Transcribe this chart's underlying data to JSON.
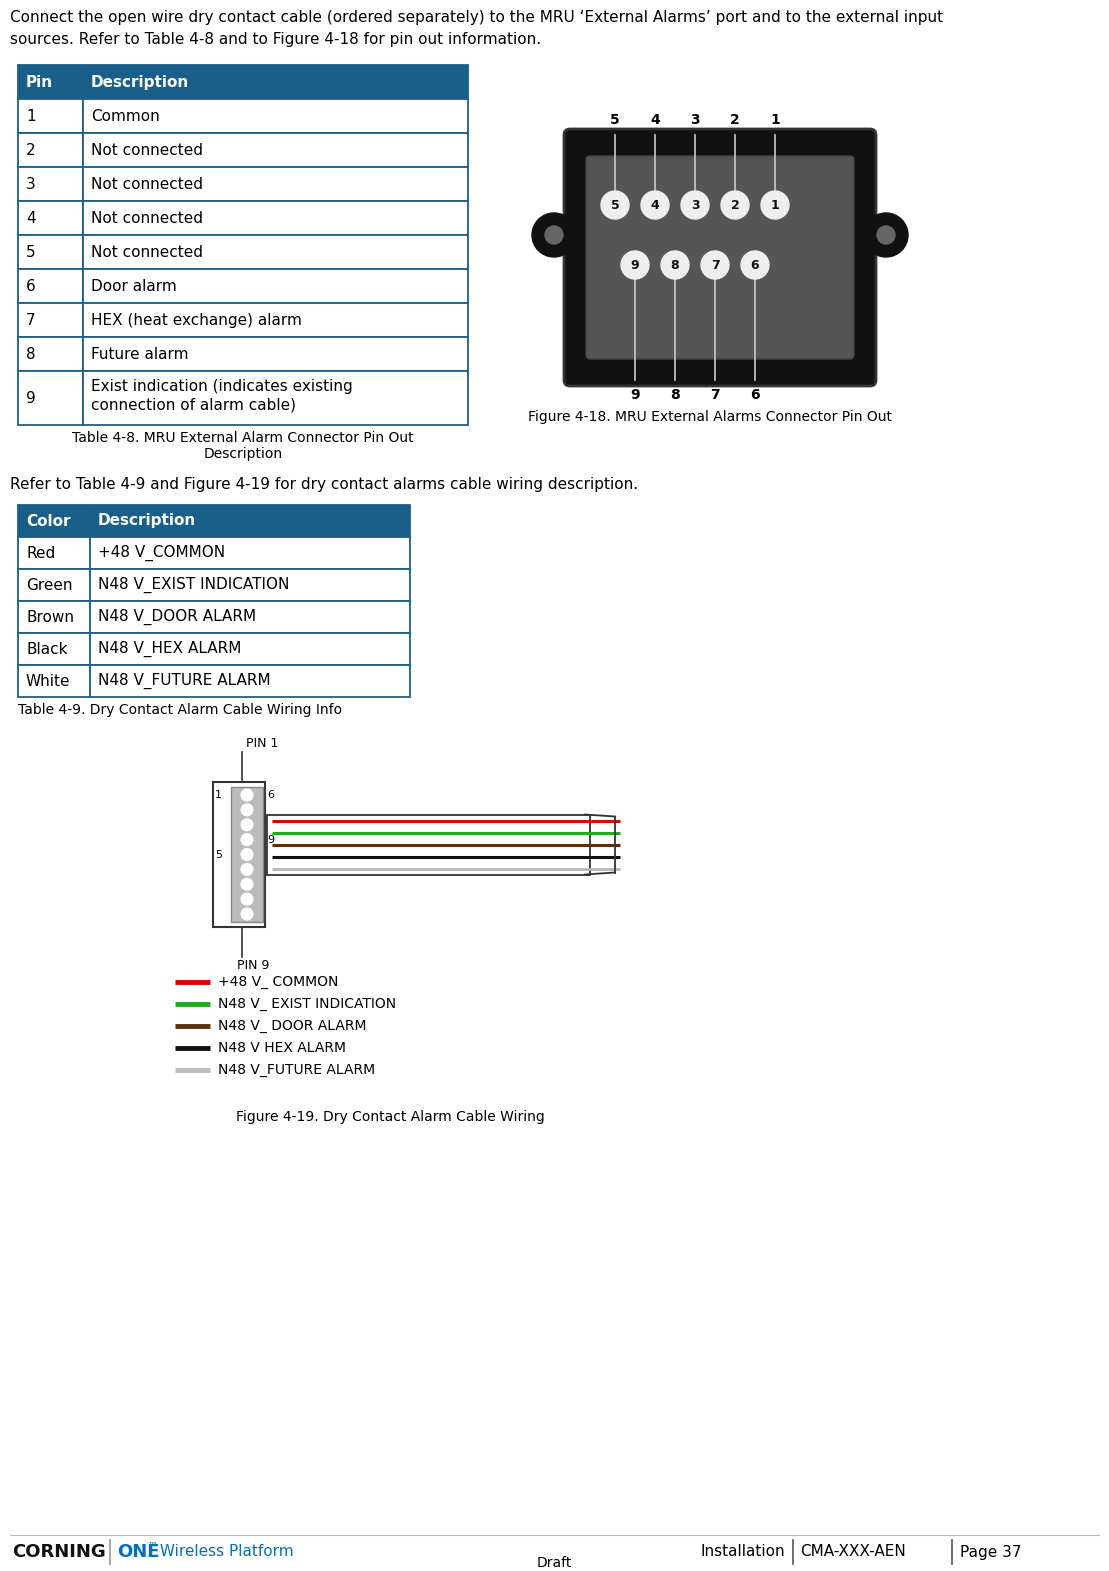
{
  "page_text_line1": "Connect the open wire dry contact cable (ordered separately) to the MRU ‘External Alarms’ port and to the external input",
  "page_text_line2": "sources. Refer to Table 4-8 and to Figure 4-18 for pin out information.",
  "table1_header": [
    "Pin",
    "Description"
  ],
  "table1_header_color": "#1a5f8a",
  "table1_header_text_color": "#FFFFFF",
  "table1_rows": [
    [
      "1",
      "Common"
    ],
    [
      "2",
      "Not connected"
    ],
    [
      "3",
      "Not connected"
    ],
    [
      "4",
      "Not connected"
    ],
    [
      "5",
      "Not connected"
    ],
    [
      "6",
      "Door alarm"
    ],
    [
      "7",
      "HEX (heat exchange) alarm"
    ],
    [
      "8",
      "Future alarm"
    ],
    [
      "9",
      "Exist indication (indicates existing\nconnection of alarm cable)"
    ]
  ],
  "table1_cap1": "Table 4-8. MRU External Alarm Connector Pin Out",
  "table1_cap2": "Description",
  "fig1_caption": "Figure 4-18. MRU External Alarms Connector Pin Out",
  "middle_text": "Refer to Table 4-9 and Figure 4-19 for dry contact alarms cable wiring description.",
  "table2_header": [
    "Color",
    "Description"
  ],
  "table2_header_color": "#1a5f8a",
  "table2_header_text_color": "#FFFFFF",
  "table2_rows": [
    [
      "Red",
      "+48 V_COMMON"
    ],
    [
      "Green",
      "N48 V_EXIST INDICATION"
    ],
    [
      "Brown",
      "N48 V_DOOR ALARM"
    ],
    [
      "Black",
      "N48 V_HEX ALARM"
    ],
    [
      "White",
      "N48 V_FUTURE ALARM"
    ]
  ],
  "table2_caption": "Table 4-9. Dry Contact Alarm Cable Wiring Info",
  "fig2_caption": "Figure 4-19. Dry Contact Alarm Cable Wiring",
  "legend_colors": [
    "#dd0000",
    "#22aa22",
    "#5a2d0c",
    "#111111",
    "#bbbbbb"
  ],
  "legend_labels": [
    "+48 V_ COMMON",
    "N48 V_ EXIST INDICATION",
    "N48 V_ DOOR ALARM",
    "N48 V HEX ALARM",
    "N48 V_FUTURE ALARM"
  ],
  "wire_colors": [
    "#dd0000",
    "#22aa22",
    "#5a2d0c",
    "#111111",
    "#bbbbbb"
  ],
  "footer_corning": "CORNING",
  "footer_one": "ONE",
  "footer_tm": "™",
  "footer_platform": " Wireless Platform",
  "footer_install": "Installation",
  "footer_doc": "CMA-XXX-AEN",
  "footer_page": "Page 37",
  "footer_draft": "Draft",
  "border_color": "#1a5f8a",
  "bg_color": "#FFFFFF"
}
